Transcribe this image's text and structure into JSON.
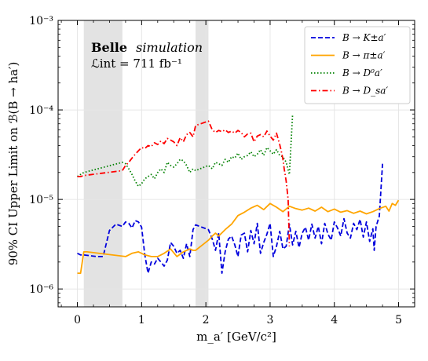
{
  "chart_data": {
    "type": "line",
    "title": "",
    "xlabel": "m_a′ [GeV/c²]",
    "ylabel": "90% CI Upper Limit on ℬ(B → ha′)",
    "xlim": [
      -0.3,
      5.25
    ],
    "ylim_log10": [
      -6.2,
      -3
    ],
    "yscale": "log",
    "grid": true,
    "legend_placement": "top-right",
    "x_ticks": [
      0,
      1,
      2,
      3,
      4,
      5
    ],
    "x_tick_labels": [
      "0",
      "1",
      "2",
      "3",
      "4",
      "5"
    ],
    "y_ticks": [
      1e-06,
      1e-05,
      0.0001,
      0.001
    ],
    "y_tick_labels": [
      "10⁻⁶",
      "10⁻⁵",
      "10⁻⁴",
      "10⁻³"
    ],
    "annotations": [
      {
        "bold": "Belle",
        "italic": "simulation"
      },
      {
        "text": "ℒint = 711 fb⁻¹"
      }
    ],
    "vetoed_regions": [
      [
        0.1,
        0.7
      ],
      [
        1.84,
        2.04
      ]
    ],
    "series": [
      {
        "name": "B → K±a′",
        "color": "#0000dd",
        "style": "dashed",
        "x": [
          0.0,
          0.05,
          0.1,
          0.2,
          0.3,
          0.4,
          0.5,
          0.6,
          0.7,
          0.75,
          0.8,
          0.85,
          0.9,
          0.95,
          1.0,
          1.05,
          1.1,
          1.15,
          1.2,
          1.25,
          1.3,
          1.35,
          1.4,
          1.45,
          1.5,
          1.55,
          1.6,
          1.65,
          1.7,
          1.75,
          1.8,
          1.84,
          2.04,
          2.1,
          2.15,
          2.2,
          2.25,
          2.3,
          2.35,
          2.4,
          2.45,
          2.5,
          2.55,
          2.6,
          2.65,
          2.7,
          2.75,
          2.8,
          2.85,
          2.9,
          2.95,
          3.0,
          3.05,
          3.1,
          3.15,
          3.2,
          3.25,
          3.3,
          3.35,
          3.4,
          3.45,
          3.5,
          3.55,
          3.6,
          3.65,
          3.7,
          3.75,
          3.8,
          3.85,
          3.9,
          3.95,
          4.0,
          4.05,
          4.1,
          4.15,
          4.2,
          4.25,
          4.3,
          4.35,
          4.4,
          4.45,
          4.5,
          4.55,
          4.6,
          4.62,
          4.65,
          4.7,
          4.75
        ],
        "y": [
          2.5e-06,
          2.4e-06,
          2.4e-06,
          2.35e-06,
          2.3e-06,
          2.3e-06,
          4.5e-06,
          5.3e-06,
          5e-06,
          5.6e-06,
          5.4e-06,
          4.8e-06,
          5.8e-06,
          5.6e-06,
          4.9e-06,
          2.4e-06,
          1.5e-06,
          2e-06,
          1.9e-06,
          2.2e-06,
          2e-06,
          1.8e-06,
          2.1e-06,
          3.3e-06,
          3e-06,
          2.5e-06,
          2.7e-06,
          2.2e-06,
          3.2e-06,
          2.3e-06,
          4.6e-06,
          5.2e-06,
          4.6e-06,
          3.6e-06,
          2.7e-06,
          4.2e-06,
          1.5e-06,
          2.6e-06,
          3.6e-06,
          3.9e-06,
          3.1e-06,
          2.3e-06,
          4e-06,
          4.2e-06,
          2.6e-06,
          4.5e-06,
          3.2e-06,
          5.4e-06,
          2.5e-06,
          3.3e-06,
          4.1e-06,
          5.4e-06,
          2.3e-06,
          3e-06,
          4.4e-06,
          2.8e-06,
          3e-06,
          5.3e-06,
          3.1e-06,
          4.4e-06,
          2.9e-06,
          4.2e-06,
          4.9e-06,
          3.5e-06,
          5.3e-06,
          3.7e-06,
          5e-06,
          3.2e-06,
          5.4e-06,
          4.1e-06,
          3.5e-06,
          5.6e-06,
          4.8e-06,
          3.9e-06,
          6.1e-06,
          4.2e-06,
          3.7e-06,
          5.4e-06,
          4.6e-06,
          6e-06,
          3.8e-06,
          5.6e-06,
          3.4e-06,
          4.7e-06,
          2.7e-06,
          5e-06,
          6.5e-06,
          2.5e-05
        ]
      },
      {
        "name": "B → π±a′",
        "color": "#ffa500",
        "style": "solid",
        "x": [
          0.0,
          0.05,
          0.1,
          0.15,
          0.75,
          0.85,
          0.95,
          1.05,
          1.15,
          1.25,
          1.35,
          1.45,
          1.55,
          1.65,
          1.75,
          1.8,
          1.84,
          2.04,
          2.1,
          2.15,
          2.2,
          2.3,
          2.4,
          2.5,
          2.6,
          2.7,
          2.8,
          2.9,
          3.0,
          3.1,
          3.2,
          3.3,
          3.4,
          3.5,
          3.6,
          3.7,
          3.8,
          3.9,
          4.0,
          4.1,
          4.2,
          4.3,
          4.4,
          4.5,
          4.6,
          4.7,
          4.8,
          4.85,
          4.9,
          4.95,
          5.0
        ],
        "y": [
          1.5e-06,
          1.5e-06,
          2.6e-06,
          2.6e-06,
          2.3e-06,
          2.5e-06,
          2.6e-06,
          2.4e-06,
          2.3e-06,
          2.3e-06,
          2.5e-06,
          2.8e-06,
          2.3e-06,
          2.6e-06,
          2.8e-06,
          2.7e-06,
          2.7e-06,
          3.5e-06,
          3.9e-06,
          4.2e-06,
          3.9e-06,
          4.6e-06,
          5.3e-06,
          6.6e-06,
          7.2e-06,
          8e-06,
          8.6e-06,
          7.7e-06,
          9e-06,
          8.2e-06,
          7.3e-06,
          8.4e-06,
          7.9e-06,
          7.6e-06,
          8e-06,
          7.4e-06,
          8.2e-06,
          7.3e-06,
          7.8e-06,
          7.2e-06,
          7.5e-06,
          7e-06,
          7.4e-06,
          6.9e-06,
          7.3e-06,
          7.9e-06,
          8.4e-06,
          7.4e-06,
          9e-06,
          8.6e-06,
          9.8e-06
        ]
      },
      {
        "name": "B → D⁰a′",
        "color": "#008000",
        "style": "dotted",
        "x": [
          0.0,
          0.05,
          0.1,
          0.7,
          0.75,
          0.8,
          0.85,
          0.9,
          0.95,
          1.0,
          1.05,
          1.1,
          1.15,
          1.2,
          1.25,
          1.3,
          1.35,
          1.4,
          1.45,
          1.5,
          1.55,
          1.6,
          1.65,
          1.7,
          1.75,
          1.8,
          1.84,
          2.04,
          2.1,
          2.15,
          2.2,
          2.25,
          2.3,
          2.35,
          2.4,
          2.45,
          2.5,
          2.55,
          2.6,
          2.65,
          2.7,
          2.75,
          2.8,
          2.85,
          2.9,
          2.95,
          3.0,
          3.05,
          3.1,
          3.15,
          3.2,
          3.25,
          3.3,
          3.35
        ],
        "y": [
          1.8e-05,
          1.9e-05,
          2e-05,
          2.6e-05,
          2.5e-05,
          2.2e-05,
          1.9e-05,
          1.6e-05,
          1.4e-05,
          1.5e-05,
          1.7e-05,
          1.8e-05,
          1.9e-05,
          1.7e-05,
          2e-05,
          2.2e-05,
          2e-05,
          2.6e-05,
          2.4e-05,
          2.3e-05,
          2.5e-05,
          2.8e-05,
          2.7e-05,
          2.4e-05,
          2e-05,
          2.2e-05,
          2.1e-05,
          2.4e-05,
          2.2e-05,
          2.6e-05,
          2.5e-05,
          2.4e-05,
          2.8e-05,
          2.6e-05,
          3e-05,
          2.9e-05,
          3.3e-05,
          2.8e-05,
          3e-05,
          3.1e-05,
          3.4e-05,
          3e-05,
          3.2e-05,
          3.6e-05,
          3.1e-05,
          3.8e-05,
          3.5e-05,
          3.2e-05,
          3.6e-05,
          3.1e-05,
          3e-05,
          2.6e-05,
          1.9e-05,
          9e-05
        ]
      },
      {
        "name": "B → D_sa′",
        "color": "#ff0000",
        "style": "dashdot",
        "x": [
          0.0,
          0.05,
          0.1,
          0.7,
          0.75,
          0.8,
          0.85,
          0.9,
          0.95,
          1.0,
          1.05,
          1.1,
          1.15,
          1.2,
          1.25,
          1.3,
          1.35,
          1.4,
          1.45,
          1.5,
          1.55,
          1.6,
          1.65,
          1.7,
          1.75,
          1.8,
          1.84,
          2.04,
          2.1,
          2.15,
          2.2,
          2.25,
          2.3,
          2.35,
          2.4,
          2.45,
          2.5,
          2.55,
          2.6,
          2.65,
          2.7,
          2.75,
          2.8,
          2.85,
          2.9,
          2.95,
          3.0,
          3.05,
          3.1,
          3.15,
          3.18,
          3.2,
          3.22,
          3.25,
          3.28,
          3.3
        ],
        "y": [
          1.8e-05,
          1.8e-05,
          1.85e-05,
          2.1e-05,
          2.4e-05,
          2.6e-05,
          2.9e-05,
          3.2e-05,
          3.5e-05,
          3.8e-05,
          3.7e-05,
          4e-05,
          3.9e-05,
          4.3e-05,
          4.1e-05,
          4.5e-05,
          4.2e-05,
          4.8e-05,
          4.6e-05,
          4.4e-05,
          4e-05,
          4.9e-05,
          4.4e-05,
          5.3e-05,
          5.6e-05,
          5e-05,
          6.7e-05,
          7.5e-05,
          6e-05,
          5.6e-05,
          5.9e-05,
          5.7e-05,
          6e-05,
          5.6e-05,
          5.8e-05,
          5.5e-05,
          5.9e-05,
          5.6e-05,
          5e-05,
          5.4e-05,
          5.5e-05,
          4.4e-05,
          5.1e-05,
          5.3e-05,
          5e-05,
          5.8e-05,
          5.1e-05,
          4.6e-05,
          5.5e-05,
          4.1e-05,
          3.3e-05,
          2.8e-05,
          2.2e-05,
          1.6e-05,
          1e-05,
          3e-06
        ]
      }
    ]
  }
}
